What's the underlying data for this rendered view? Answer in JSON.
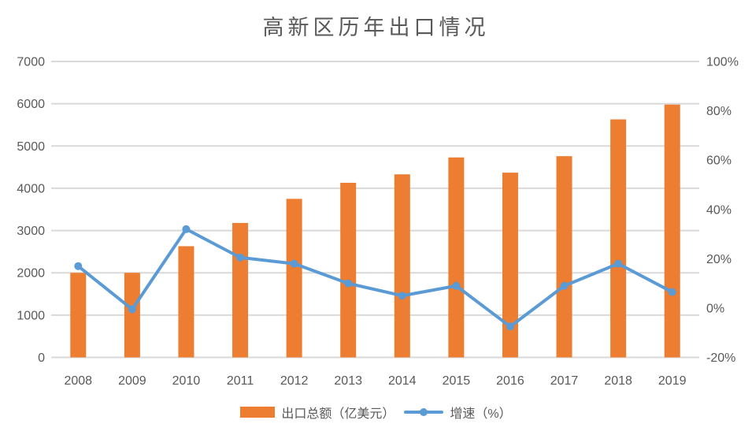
{
  "chart_data": {
    "type": "bar",
    "subtype": "combo-bar-line",
    "title": "高新区历年出口情况",
    "categories": [
      "2008",
      "2009",
      "2010",
      "2011",
      "2012",
      "2013",
      "2014",
      "2015",
      "2016",
      "2017",
      "2018",
      "2019"
    ],
    "series": [
      {
        "name": "出口总额（亿美元）",
        "type": "bar",
        "axis": "left",
        "color": "#ED7D31",
        "values": [
          2000,
          2000,
          2630,
          3180,
          3750,
          4130,
          4330,
          4730,
          4370,
          4760,
          5630,
          5980
        ]
      },
      {
        "name": "增速（%）",
        "type": "line",
        "axis": "right",
        "color": "#5B9BD5",
        "values": [
          17,
          -0.5,
          32,
          20.5,
          18,
          10,
          5,
          9,
          -7.5,
          9,
          18,
          6.5
        ]
      }
    ],
    "left_axis": {
      "min": 0,
      "max": 7000,
      "step": 1000,
      "ticks": [
        "0",
        "1000",
        "2000",
        "3000",
        "4000",
        "5000",
        "6000",
        "7000"
      ]
    },
    "right_axis": {
      "min": -20,
      "max": 100,
      "step": 20,
      "ticks": [
        "-20%",
        "0%",
        "20%",
        "40%",
        "60%",
        "80%",
        "100%"
      ]
    },
    "grid": true,
    "legend_position": "bottom",
    "colors": {
      "bar": "#ED7D31",
      "line": "#5B9BD5",
      "grid": "#D9D9D9",
      "text": "#595959"
    }
  }
}
